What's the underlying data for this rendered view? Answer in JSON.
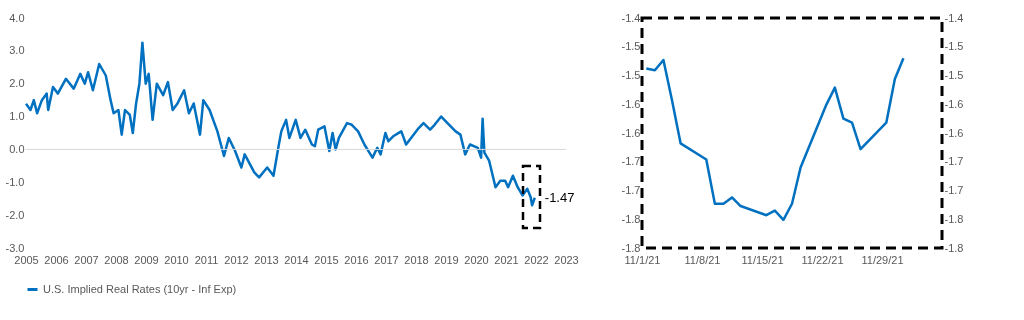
{
  "chart_data": [
    {
      "type": "line",
      "x": [
        2005.0,
        2005.15,
        2005.26,
        2005.37,
        2005.53,
        2005.69,
        2005.74,
        2005.9,
        2006.06,
        2006.33,
        2006.59,
        2006.81,
        2006.96,
        2007.07,
        2007.23,
        2007.44,
        2007.66,
        2007.82,
        2007.92,
        2008.08,
        2008.19,
        2008.3,
        2008.46,
        2008.56,
        2008.67,
        2008.78,
        2008.88,
        2008.99,
        2009.09,
        2009.22,
        2009.36,
        2009.57,
        2009.73,
        2009.89,
        2010.05,
        2010.27,
        2010.43,
        2010.59,
        2010.8,
        2010.91,
        2011.12,
        2011.38,
        2011.6,
        2011.76,
        2011.97,
        2012.18,
        2012.29,
        2012.61,
        2012.77,
        2013.04,
        2013.25,
        2013.41,
        2013.51,
        2013.67,
        2013.78,
        2013.99,
        2014.15,
        2014.31,
        2014.53,
        2014.63,
        2014.74,
        2014.95,
        2015.11,
        2015.22,
        2015.32,
        2015.43,
        2015.7,
        2015.86,
        2016.07,
        2016.28,
        2016.55,
        2016.71,
        2016.82,
        2016.98,
        2017.08,
        2017.24,
        2017.51,
        2017.67,
        2017.88,
        2018.09,
        2018.25,
        2018.47,
        2018.62,
        2018.84,
        2019.05,
        2019.32,
        2019.48,
        2019.64,
        2019.8,
        2020.06,
        2020.17,
        2020.22,
        2020.28,
        2020.44,
        2020.65,
        2020.81,
        2020.97,
        2021.07,
        2021.23,
        2021.39,
        2021.55,
        2021.71,
        2021.82,
        2021.87,
        2021.96
      ],
      "series": [
        {
          "name": "U.S. Implied Real Rates (10yr - Inf Exp)",
          "color": "#0070c0",
          "values": [
            1.39,
            1.2,
            1.5,
            1.1,
            1.5,
            1.7,
            1.2,
            1.9,
            1.7,
            2.15,
            1.85,
            2.3,
            2.0,
            2.35,
            1.8,
            2.6,
            2.25,
            1.5,
            1.1,
            1.2,
            0.45,
            1.2,
            1.05,
            0.5,
            1.4,
            2.0,
            3.25,
            2.0,
            2.3,
            0.9,
            2.0,
            1.65,
            2.05,
            1.2,
            1.4,
            1.8,
            1.1,
            1.4,
            0.45,
            1.5,
            1.2,
            0.55,
            -0.2,
            0.35,
            -0.05,
            -0.55,
            -0.15,
            -0.7,
            -0.85,
            -0.55,
            -0.8,
            0.05,
            0.55,
            0.9,
            0.35,
            0.9,
            0.35,
            0.6,
            0.15,
            0.1,
            0.6,
            0.7,
            -0.05,
            0.5,
            0.0,
            0.35,
            0.8,
            0.75,
            0.55,
            0.15,
            -0.25,
            0.05,
            -0.15,
            0.5,
            0.25,
            0.4,
            0.55,
            0.15,
            0.4,
            0.65,
            0.8,
            0.6,
            0.75,
            1.0,
            0.8,
            0.55,
            0.45,
            -0.15,
            0.15,
            0.05,
            -0.25,
            0.93,
            -0.1,
            -0.35,
            -1.15,
            -0.95,
            -0.95,
            -1.15,
            -0.8,
            -1.15,
            -1.4,
            -1.2,
            -1.45,
            -1.7,
            -1.47
          ]
        }
      ],
      "xlim": [
        2005,
        2023
      ],
      "xticks": [
        2005,
        2006,
        2007,
        2008,
        2009,
        2010,
        2011,
        2012,
        2013,
        2014,
        2015,
        2016,
        2017,
        2018,
        2019,
        2020,
        2021,
        2022,
        2023
      ],
      "ylim": [
        -3,
        4
      ],
      "yticks": [
        {
          "value": -3,
          "label": "-3.0"
        },
        {
          "value": -2,
          "label": "-2.0"
        },
        {
          "value": -1,
          "label": "-1.0"
        },
        {
          "value": 0,
          "label": "0.0"
        },
        {
          "value": 1,
          "label": "1.0"
        },
        {
          "value": 2,
          "label": "2.0"
        },
        {
          "value": 3,
          "label": "3.0"
        },
        {
          "value": 4,
          "label": "4.0"
        }
      ],
      "ref_lines": [
        {
          "axis": "y",
          "value": 0,
          "color": "#d9d9d9"
        }
      ],
      "annotations": [
        {
          "text": "-1.47",
          "x": 2021.96,
          "y": -1.47
        }
      ],
      "legend": "bottom",
      "grid": false
    },
    {
      "type": "line",
      "x": [
        "2021-11-01T12:00",
        "2021-11-02T12:00",
        "2021-11-03T12:00",
        "2021-11-04T12:00",
        "2021-11-05T12:00",
        "2021-11-08T12:00",
        "2021-11-09T12:00",
        "2021-11-10T12:00",
        "2021-11-11T12:00",
        "2021-11-12T12:00",
        "2021-11-15T12:00",
        "2021-11-16T12:00",
        "2021-11-17T12:00",
        "2021-11-18T12:00",
        "2021-11-19T12:00",
        "2021-11-22T12:00",
        "2021-11-23T12:00",
        "2021-11-24T12:00",
        "2021-11-25T12:00",
        "2021-11-26T12:00",
        "2021-11-29T12:00",
        "2021-11-30T12:00",
        "2021-12-01T12:00"
      ],
      "series": [
        {
          "color": "#0070c0",
          "values": [
            -1.488,
            -1.491,
            -1.473,
            -1.543,
            -1.618,
            -1.646,
            -1.723,
            -1.723,
            -1.712,
            -1.727,
            -1.743,
            -1.735,
            -1.751,
            -1.723,
            -1.66,
            -1.551,
            -1.521,
            -1.575,
            -1.582,
            -1.628,
            -1.582,
            -1.506,
            -1.47
          ]
        }
      ],
      "xlim": [
        "2021-11-01",
        "2021-12-06"
      ],
      "xticks": [
        {
          "value": "2021-11-01",
          "label": "11/1/21"
        },
        {
          "value": "2021-11-08",
          "label": "11/8/21"
        },
        {
          "value": "2021-11-15",
          "label": "11/15/21"
        },
        {
          "value": "2021-11-22",
          "label": "11/22/21"
        },
        {
          "value": "2021-11-29",
          "label": "11/29/21"
        }
      ],
      "ylim": [
        -1.8,
        -1.4
      ],
      "yticks": [
        {
          "value": -1.8,
          "label": "-1.8"
        },
        {
          "value": -1.75,
          "label": "-1.8"
        },
        {
          "value": -1.7,
          "label": "-1.7"
        },
        {
          "value": -1.65,
          "label": "-1.7"
        },
        {
          "value": -1.6,
          "label": "-1.6"
        },
        {
          "value": -1.55,
          "label": "-1.6"
        },
        {
          "value": -1.5,
          "label": "-1.5"
        },
        {
          "value": -1.45,
          "label": "-1.5"
        },
        {
          "value": -1.4,
          "label": "-1.4"
        }
      ],
      "y2lim": [
        -1.8,
        -1.4
      ],
      "y2ticks": [
        {
          "value": -1.8,
          "label": "-1.8"
        },
        {
          "value": -1.75,
          "label": "-1.8"
        },
        {
          "value": -1.7,
          "label": "-1.7"
        },
        {
          "value": -1.65,
          "label": "-1.7"
        },
        {
          "value": -1.6,
          "label": "-1.6"
        },
        {
          "value": -1.55,
          "label": "-1.6"
        },
        {
          "value": -1.5,
          "label": "-1.5"
        },
        {
          "value": -1.45,
          "label": "-1.5"
        },
        {
          "value": -1.4,
          "label": "-1.4"
        }
      ],
      "grid": false
    }
  ]
}
